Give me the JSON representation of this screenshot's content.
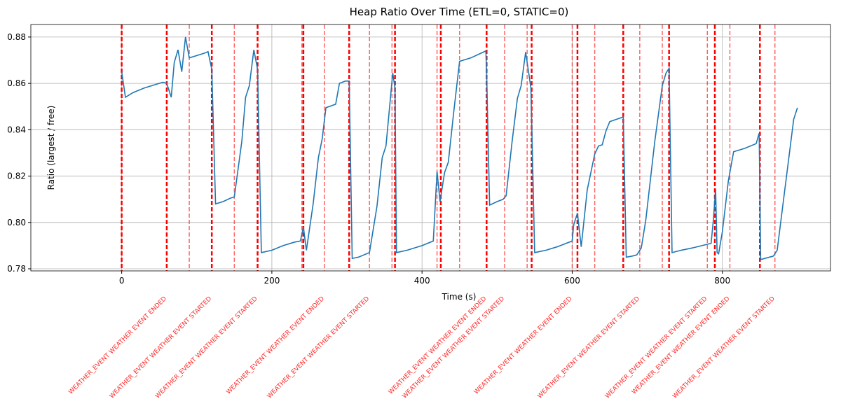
{
  "chart_data": {
    "type": "line",
    "title": "Heap Ratio Over Time (ETL=0, STATIC=0)",
    "x_label": "Time (s)",
    "y_label": "Ratio (largest / free)",
    "xlim": [
      -121,
      944
    ],
    "ylim": [
      0.7791,
      0.8854
    ],
    "xticks": [
      0,
      200,
      400,
      600,
      800
    ],
    "yticks": [
      0.78,
      {
        "value": 0.8,
        "label": "0.80"
      },
      0.82,
      0.84,
      0.86,
      0.88
    ],
    "grid": true,
    "series": [
      {
        "color": "#1f77b4",
        "x": [
          0,
          5,
          15,
          30,
          45,
          55,
          60,
          66,
          70,
          75,
          80,
          85,
          90,
          100,
          110,
          115,
          120,
          125,
          135,
          145,
          150,
          160,
          165,
          170,
          176,
          181,
          186,
          200,
          215,
          230,
          238,
          242,
          246,
          255,
          262,
          267,
          272,
          285,
          290,
          298,
          303,
          307,
          315,
          330,
          340,
          347,
          352,
          361,
          364,
          366,
          380,
          400,
          415,
          420,
          424,
          430,
          435,
          442,
          450,
          465,
          475,
          485,
          486,
          490,
          500,
          508,
          512,
          520,
          527,
          532,
          538,
          545,
          550,
          565,
          580,
          600,
          602,
          607,
          612,
          620,
          630,
          635,
          640,
          645,
          650,
          668,
          672,
          680,
          686,
          692,
          698,
          710,
          720,
          725,
          729,
          733,
          745,
          760,
          785,
          788,
          791,
          793,
          795,
          800,
          808,
          815,
          830,
          845,
          849,
          851,
          868,
          873,
          880,
          895,
          900
        ],
        "values": [
          0.865,
          0.854,
          0.856,
          0.858,
          0.8595,
          0.8605,
          0.86,
          0.854,
          0.869,
          0.8745,
          0.865,
          0.88,
          0.871,
          0.872,
          0.873,
          0.8737,
          0.866,
          0.808,
          0.809,
          0.8105,
          0.811,
          0.835,
          0.854,
          0.859,
          0.8745,
          0.866,
          0.787,
          0.788,
          0.79,
          0.7915,
          0.792,
          0.798,
          0.788,
          0.808,
          0.828,
          0.836,
          0.8495,
          0.851,
          0.86,
          0.861,
          0.861,
          0.7845,
          0.785,
          0.787,
          0.807,
          0.828,
          0.833,
          0.8645,
          0.858,
          0.787,
          0.788,
          0.79,
          0.792,
          0.822,
          0.809,
          0.8215,
          0.826,
          0.847,
          0.8695,
          0.871,
          0.8725,
          0.874,
          0.865,
          0.8075,
          0.809,
          0.81,
          0.8115,
          0.835,
          0.8535,
          0.859,
          0.8735,
          0.858,
          0.787,
          0.788,
          0.7895,
          0.792,
          0.799,
          0.804,
          0.7895,
          0.814,
          0.8295,
          0.833,
          0.8335,
          0.8395,
          0.8435,
          0.8455,
          0.785,
          0.7855,
          0.786,
          0.789,
          0.801,
          0.835,
          0.859,
          0.8645,
          0.8665,
          0.787,
          0.788,
          0.789,
          0.791,
          0.801,
          0.8145,
          0.787,
          0.7865,
          0.796,
          0.818,
          0.8305,
          0.832,
          0.834,
          0.8385,
          0.784,
          0.7855,
          0.788,
          0.806,
          0.8445,
          0.8495
        ]
      }
    ],
    "event_color": "#ff0000",
    "event_lines_major": [
      0,
      60,
      120,
      181,
      242,
      303,
      364,
      425,
      486,
      546,
      607,
      668,
      729,
      790,
      850
    ],
    "event_lines_minor": [
      90,
      150,
      240,
      270,
      330,
      360,
      420,
      450,
      510,
      540,
      600,
      630,
      690,
      720,
      780,
      810,
      870
    ],
    "event_labels": [
      {
        "x": 60,
        "text": "WEATHER_EVENT WEATHER EVENT ENDED"
      },
      {
        "x": 120,
        "text": "WEATHER_EVENT WEATHER EVENT STARTED"
      },
      {
        "x": 181,
        "text": "WEATHER_EVENT WEATHER EVENT STARTED"
      },
      {
        "x": 270,
        "text": "WEATHER_EVENT WEATHER EVENT ENDED"
      },
      {
        "x": 330,
        "text": "WEATHER_EVENT WEATHER EVENT STARTED"
      },
      {
        "x": 486,
        "text": "WEATHER_EVENT WEATHER EVENT ENDED"
      },
      {
        "x": 510,
        "text": "WEATHER_EVENT WEATHER EVENT STARTED"
      },
      {
        "x": 600,
        "text": "WEATHER_EVENT WEATHER EVENT ENDED"
      },
      {
        "x": 690,
        "text": "WEATHER_EVENT WEATHER EVENT STARTED"
      },
      {
        "x": 780,
        "text": "WEATHER_EVENT WEATHER EVENT STARTED"
      },
      {
        "x": 810,
        "text": "WEATHER_EVENT WEATHER EVENT ENDED"
      },
      {
        "x": 870,
        "text": "WEATHER_EVENT WEATHER EVENT STARTED"
      }
    ]
  }
}
